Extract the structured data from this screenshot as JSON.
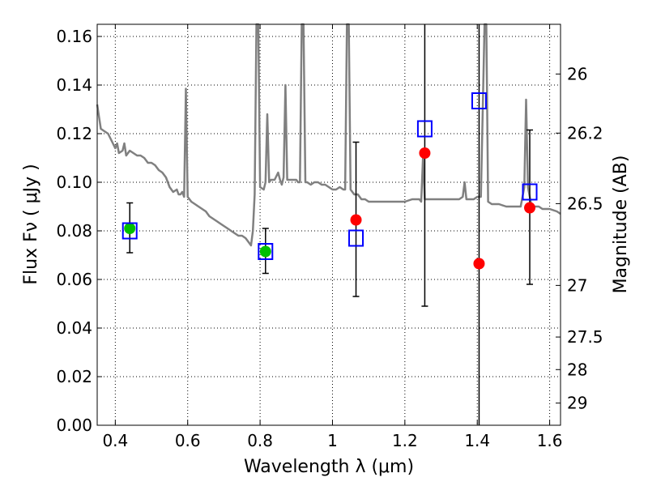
{
  "chart_data": {
    "type": "scatter",
    "xlabel": "Wavelength  λ (μm)",
    "ylabel": "Flux  Fν  ( μJy )",
    "ylabel_right": "Magnitude (AB)",
    "xlim": [
      0.35,
      1.63
    ],
    "ylim": [
      0.0,
      0.165
    ],
    "grid": true,
    "x_ticks": [
      {
        "value": 0.4,
        "label": "0.4"
      },
      {
        "value": 0.6,
        "label": "0.6"
      },
      {
        "value": 0.8,
        "label": "0.8"
      },
      {
        "value": 1.0,
        "label": "1"
      },
      {
        "value": 1.2,
        "label": "1.2"
      },
      {
        "value": 1.4,
        "label": "1.4"
      },
      {
        "value": 1.6,
        "label": "1.6"
      }
    ],
    "y_ticks": [
      {
        "value": 0.0,
        "label": "0.00"
      },
      {
        "value": 0.02,
        "label": "0.02"
      },
      {
        "value": 0.04,
        "label": "0.04"
      },
      {
        "value": 0.06,
        "label": "0.06"
      },
      {
        "value": 0.08,
        "label": "0.08"
      },
      {
        "value": 0.1,
        "label": "0.10"
      },
      {
        "value": 0.12,
        "label": "0.12"
      },
      {
        "value": 0.14,
        "label": "0.14"
      },
      {
        "value": 0.16,
        "label": "0.16"
      }
    ],
    "mag_ticks": [
      {
        "value": 26,
        "label": "26"
      },
      {
        "value": 26.2,
        "label": "26.2"
      },
      {
        "value": 26.5,
        "label": "26.5"
      },
      {
        "value": 27,
        "label": "27"
      },
      {
        "value": 27.5,
        "label": "27.5"
      },
      {
        "value": 28,
        "label": "28"
      },
      {
        "value": 29,
        "label": "29"
      }
    ],
    "series": [
      {
        "kind": "model-spectrum",
        "color": "#808080",
        "points": [
          [
            0.35,
            0.132
          ],
          [
            0.355,
            0.127
          ],
          [
            0.36,
            0.122
          ],
          [
            0.37,
            0.121
          ],
          [
            0.38,
            0.12
          ],
          [
            0.39,
            0.117
          ],
          [
            0.4,
            0.114
          ],
          [
            0.405,
            0.116
          ],
          [
            0.41,
            0.112
          ],
          [
            0.42,
            0.113
          ],
          [
            0.425,
            0.116
          ],
          [
            0.43,
            0.111
          ],
          [
            0.44,
            0.113
          ],
          [
            0.45,
            0.112
          ],
          [
            0.46,
            0.111
          ],
          [
            0.47,
            0.111
          ],
          [
            0.48,
            0.11
          ],
          [
            0.49,
            0.108
          ],
          [
            0.5,
            0.108
          ],
          [
            0.51,
            0.107
          ],
          [
            0.52,
            0.105
          ],
          [
            0.53,
            0.104
          ],
          [
            0.54,
            0.102
          ],
          [
            0.55,
            0.098
          ],
          [
            0.56,
            0.096
          ],
          [
            0.57,
            0.097
          ],
          [
            0.575,
            0.095
          ],
          [
            0.58,
            0.095
          ],
          [
            0.585,
            0.096
          ],
          [
            0.59,
            0.094
          ],
          [
            0.595,
            0.1385
          ],
          [
            0.6,
            0.094
          ],
          [
            0.61,
            0.092
          ],
          [
            0.62,
            0.091
          ],
          [
            0.63,
            0.09
          ],
          [
            0.64,
            0.089
          ],
          [
            0.65,
            0.088
          ],
          [
            0.66,
            0.086
          ],
          [
            0.67,
            0.085
          ],
          [
            0.68,
            0.084
          ],
          [
            0.69,
            0.083
          ],
          [
            0.7,
            0.082
          ],
          [
            0.71,
            0.081
          ],
          [
            0.72,
            0.08
          ],
          [
            0.73,
            0.079
          ],
          [
            0.74,
            0.078
          ],
          [
            0.75,
            0.078
          ],
          [
            0.76,
            0.077
          ],
          [
            0.77,
            0.075
          ],
          [
            0.775,
            0.074
          ],
          [
            0.78,
            0.08
          ],
          [
            0.785,
            0.095
          ],
          [
            0.79,
            0.165
          ],
          [
            0.795,
            0.165
          ],
          [
            0.8,
            0.098
          ],
          [
            0.81,
            0.097
          ],
          [
            0.815,
            0.1
          ],
          [
            0.82,
            0.128
          ],
          [
            0.825,
            0.1
          ],
          [
            0.83,
            0.101
          ],
          [
            0.84,
            0.101
          ],
          [
            0.85,
            0.104
          ],
          [
            0.855,
            0.101
          ],
          [
            0.86,
            0.099
          ],
          [
            0.865,
            0.102
          ],
          [
            0.87,
            0.14
          ],
          [
            0.875,
            0.101
          ],
          [
            0.88,
            0.101
          ],
          [
            0.89,
            0.101
          ],
          [
            0.9,
            0.101
          ],
          [
            0.905,
            0.1
          ],
          [
            0.91,
            0.1
          ],
          [
            0.915,
            0.165
          ],
          [
            0.92,
            0.165
          ],
          [
            0.925,
            0.1
          ],
          [
            0.93,
            0.1
          ],
          [
            0.94,
            0.099
          ],
          [
            0.95,
            0.1
          ],
          [
            0.96,
            0.1
          ],
          [
            0.97,
            0.099
          ],
          [
            0.98,
            0.099
          ],
          [
            0.99,
            0.098
          ],
          [
            1.0,
            0.097
          ],
          [
            1.01,
            0.097
          ],
          [
            1.02,
            0.098
          ],
          [
            1.03,
            0.097
          ],
          [
            1.035,
            0.097
          ],
          [
            1.04,
            0.165
          ],
          [
            1.045,
            0.165
          ],
          [
            1.05,
            0.097
          ],
          [
            1.06,
            0.095
          ],
          [
            1.07,
            0.095
          ],
          [
            1.08,
            0.093
          ],
          [
            1.09,
            0.093
          ],
          [
            1.1,
            0.092
          ],
          [
            1.12,
            0.092
          ],
          [
            1.14,
            0.092
          ],
          [
            1.16,
            0.092
          ],
          [
            1.18,
            0.092
          ],
          [
            1.2,
            0.092
          ],
          [
            1.22,
            0.093
          ],
          [
            1.24,
            0.093
          ],
          [
            1.245,
            0.092
          ],
          [
            1.25,
            0.11
          ],
          [
            1.255,
            0.093
          ],
          [
            1.27,
            0.093
          ],
          [
            1.29,
            0.093
          ],
          [
            1.31,
            0.093
          ],
          [
            1.33,
            0.093
          ],
          [
            1.35,
            0.093
          ],
          [
            1.36,
            0.094
          ],
          [
            1.365,
            0.1
          ],
          [
            1.37,
            0.093
          ],
          [
            1.39,
            0.093
          ],
          [
            1.4,
            0.094
          ],
          [
            1.41,
            0.094
          ],
          [
            1.42,
            0.165
          ],
          [
            1.425,
            0.165
          ],
          [
            1.43,
            0.092
          ],
          [
            1.44,
            0.091
          ],
          [
            1.46,
            0.091
          ],
          [
            1.48,
            0.09
          ],
          [
            1.5,
            0.09
          ],
          [
            1.52,
            0.09
          ],
          [
            1.53,
            0.098
          ],
          [
            1.535,
            0.134
          ],
          [
            1.54,
            0.098
          ],
          [
            1.55,
            0.09
          ],
          [
            1.57,
            0.09
          ],
          [
            1.58,
            0.089
          ],
          [
            1.6,
            0.089
          ],
          [
            1.62,
            0.088
          ],
          [
            1.63,
            0.087
          ]
        ]
      },
      {
        "kind": "green-filled-circle",
        "color": "#00c000",
        "points": [
          [
            0.44,
            0.081
          ],
          [
            0.815,
            0.0715
          ]
        ]
      },
      {
        "kind": "red-filled-circle",
        "color": "#ff0000",
        "points": [
          [
            1.065,
            0.0845
          ],
          [
            1.255,
            0.112
          ],
          [
            1.405,
            0.0665
          ],
          [
            1.545,
            0.0895
          ]
        ]
      },
      {
        "kind": "blue-open-square",
        "color": "#0000ff",
        "points": [
          [
            0.44,
            0.08
          ],
          [
            0.815,
            0.0715
          ],
          [
            1.065,
            0.077
          ],
          [
            1.255,
            0.122
          ],
          [
            1.405,
            0.1335
          ],
          [
            1.545,
            0.096
          ]
        ]
      },
      {
        "kind": "error-bar",
        "color": "#000000",
        "bars": [
          {
            "x": 0.44,
            "low": 0.071,
            "high": 0.0915
          },
          {
            "x": 0.815,
            "low": 0.0625,
            "high": 0.081
          },
          {
            "x": 1.065,
            "low": 0.053,
            "high": 0.1165
          },
          {
            "x": 1.255,
            "low": 0.049,
            "high": 0.165
          },
          {
            "x": 1.405,
            "low": 0.0,
            "high": 0.165
          },
          {
            "x": 1.545,
            "low": 0.058,
            "high": 0.1215
          }
        ]
      }
    ]
  }
}
